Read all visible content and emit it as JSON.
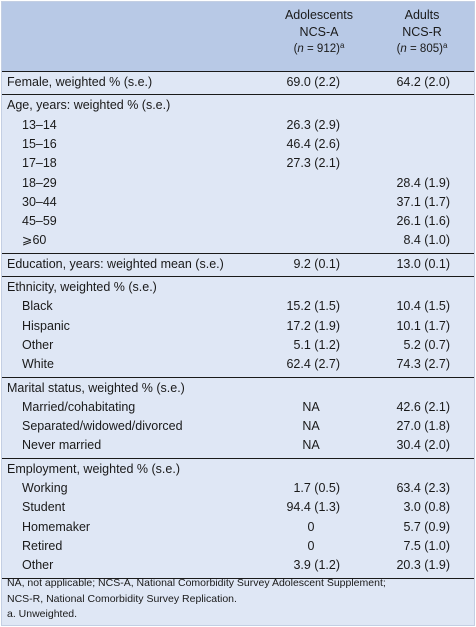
{
  "header": {
    "adolescents": {
      "line1": "Adolescents",
      "line2": "NCS-A",
      "n_prefix": "(",
      "n_var": "n",
      "n_value": " = 912)",
      "n_sup": "a"
    },
    "adults": {
      "line1": "Adults",
      "line2": "NCS-R",
      "n_prefix": "(",
      "n_var": "n",
      "n_value": " = 805)",
      "n_sup": "a"
    }
  },
  "sections": [
    {
      "title": "Female, weighted % (s.e.)",
      "a": "69.0 (2.2)",
      "b": "64.2 (2.0)",
      "rows": []
    },
    {
      "title": "Age, years: weighted % (s.e.)",
      "a": "",
      "b": "",
      "rows": [
        {
          "label": "13–14",
          "a": "26.3 (2.9)",
          "b": ""
        },
        {
          "label": "15–16",
          "a": "46.4 (2.6)",
          "b": ""
        },
        {
          "label": "17–18",
          "a": "27.3 (2.1)",
          "b": ""
        },
        {
          "label": "18–29",
          "a": "",
          "b": "28.4 (1.9)"
        },
        {
          "label": "30–44",
          "a": "",
          "b": "37.1 (1.7)"
        },
        {
          "label": "45–59",
          "a": "",
          "b": "26.1 (1.6)"
        },
        {
          "label": "⩾60",
          "a": "",
          "b": "8.4 (1.0)"
        }
      ]
    },
    {
      "title": "Education, years: weighted mean (s.e.)",
      "a": "9.2 (0.1)",
      "b": "13.0 (0.1)",
      "rows": []
    },
    {
      "title": "Ethnicity, weighted % (s.e.)",
      "a": "",
      "b": "",
      "rows": [
        {
          "label": "Black",
          "a": "15.2 (1.5)",
          "b": "10.4 (1.5)"
        },
        {
          "label": "Hispanic",
          "a": "17.2 (1.9)",
          "b": "10.1 (1.7)"
        },
        {
          "label": "Other",
          "a": "5.1 (1.2)",
          "b": "5.2 (0.7)"
        },
        {
          "label": "White",
          "a": "62.4 (2.7)",
          "b": "74.3 (2.7)"
        }
      ]
    },
    {
      "title": "Marital status, weighted % (s.e.)",
      "a": "",
      "b": "",
      "rows": [
        {
          "label": "Married/cohabitating",
          "a": "NA",
          "b": "42.6 (2.1)"
        },
        {
          "label": "Separated/widowed/divorced",
          "a": "NA",
          "b": "27.0 (1.8)"
        },
        {
          "label": "Never married",
          "a": "NA",
          "b": "30.4 (2.0)"
        }
      ]
    },
    {
      "title": "Employment, weighted % (s.e.)",
      "a": "",
      "b": "",
      "rows": [
        {
          "label": "Working",
          "a": "1.7 (0.5)",
          "b": "63.4 (2.3)"
        },
        {
          "label": "Student",
          "a": "94.4 (1.3)",
          "b": "3.0 (0.8)"
        },
        {
          "label": "Homemaker",
          "a": "0",
          "b": "5.7 (0.9)"
        },
        {
          "label": "Retired",
          "a": "0",
          "b": "7.5 (1.0)"
        },
        {
          "label": "Other",
          "a": "3.9 (1.2)",
          "b": "20.3 (1.9)"
        }
      ]
    }
  ],
  "notes": {
    "line1": "NA, not applicable; NCS-A, National Comorbidity Survey Adolescent Supplement;",
    "line2": "NCS-R, National Comorbidity Survey Replication.",
    "line3": "a. Unweighted."
  }
}
